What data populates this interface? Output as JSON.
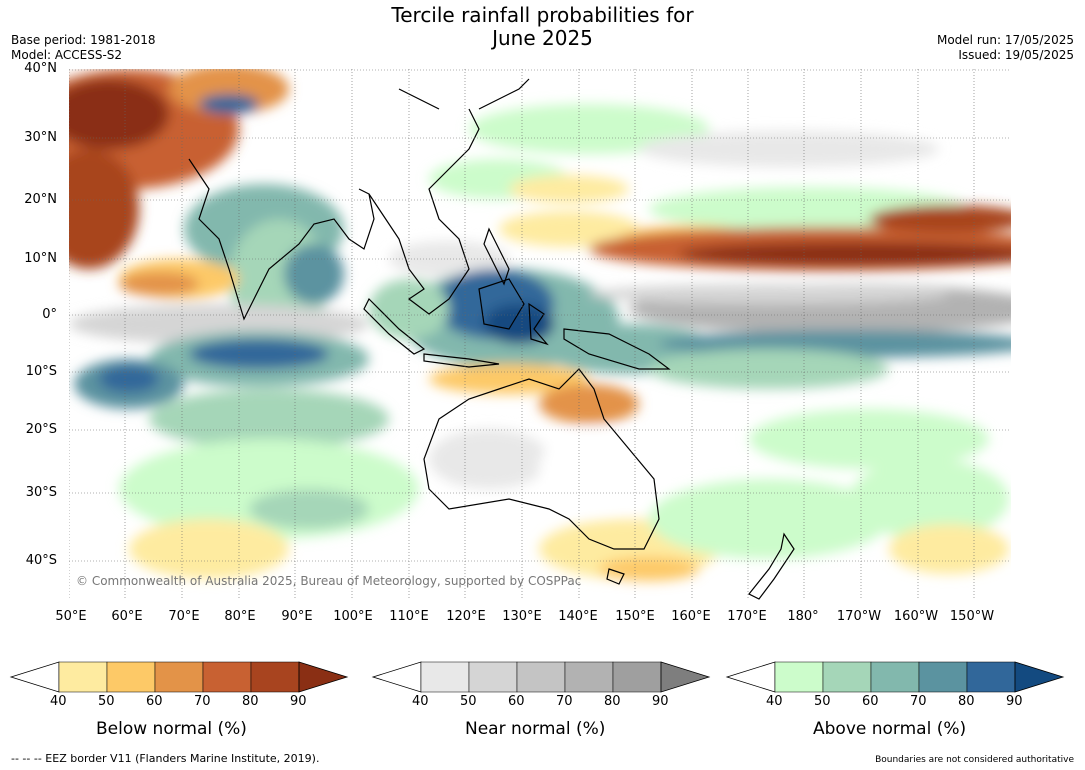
{
  "title_line1": "Tercile rainfall probabilities for",
  "title_line2": "June 2025",
  "meta_left": {
    "base_period": "Base period: 1981-2018",
    "model": "Model: ACCESS-S2"
  },
  "meta_right": {
    "model_run": "Model run: 17/05/2025",
    "issued": "Issued: 19/05/2025"
  },
  "lat_labels": [
    "40°N",
    "30°N",
    "20°N",
    "10°N",
    "0°",
    "10°S",
    "20°S",
    "30°S",
    "40°S"
  ],
  "lon_labels": [
    "50°E",
    "60°E",
    "70°E",
    "80°E",
    "90°E",
    "100°E",
    "110°E",
    "120°E",
    "130°E",
    "140°E",
    "150°E",
    "160°E",
    "170°E",
    "180°",
    "170°W",
    "160°W",
    "150°W"
  ],
  "copyright": "© Commonwealth of Australia 2025, Bureau of Meteorology, supported by COSPPac",
  "colorbars": [
    {
      "title": "Below normal (%)",
      "ticks": [
        "40",
        "50",
        "60",
        "70",
        "80",
        "90"
      ],
      "colors": [
        "#ffffff",
        "#feeba0",
        "#fdc967",
        "#e39348",
        "#c86132",
        "#a8441f",
        "#8a2f14"
      ]
    },
    {
      "title": "Near normal (%)",
      "ticks": [
        "40",
        "50",
        "60",
        "70",
        "80",
        "90"
      ],
      "colors": [
        "#ffffff",
        "#e8e8e8",
        "#d5d5d5",
        "#c4c4c4",
        "#b2b2b2",
        "#9f9f9f",
        "#7e7e7e"
      ]
    },
    {
      "title": "Above normal (%)",
      "ticks": [
        "40",
        "50",
        "60",
        "70",
        "80",
        "90"
      ],
      "colors": [
        "#ffffff",
        "#ccfccb",
        "#a5d6b8",
        "#82b8ad",
        "#5b93a0",
        "#31679a",
        "#134a80"
      ]
    }
  ],
  "footer_left": "-- -- -- EEZ border V11 (Flanders Marine Institute, 2019).",
  "footer_right": "Boundaries are not considered authoritative"
}
